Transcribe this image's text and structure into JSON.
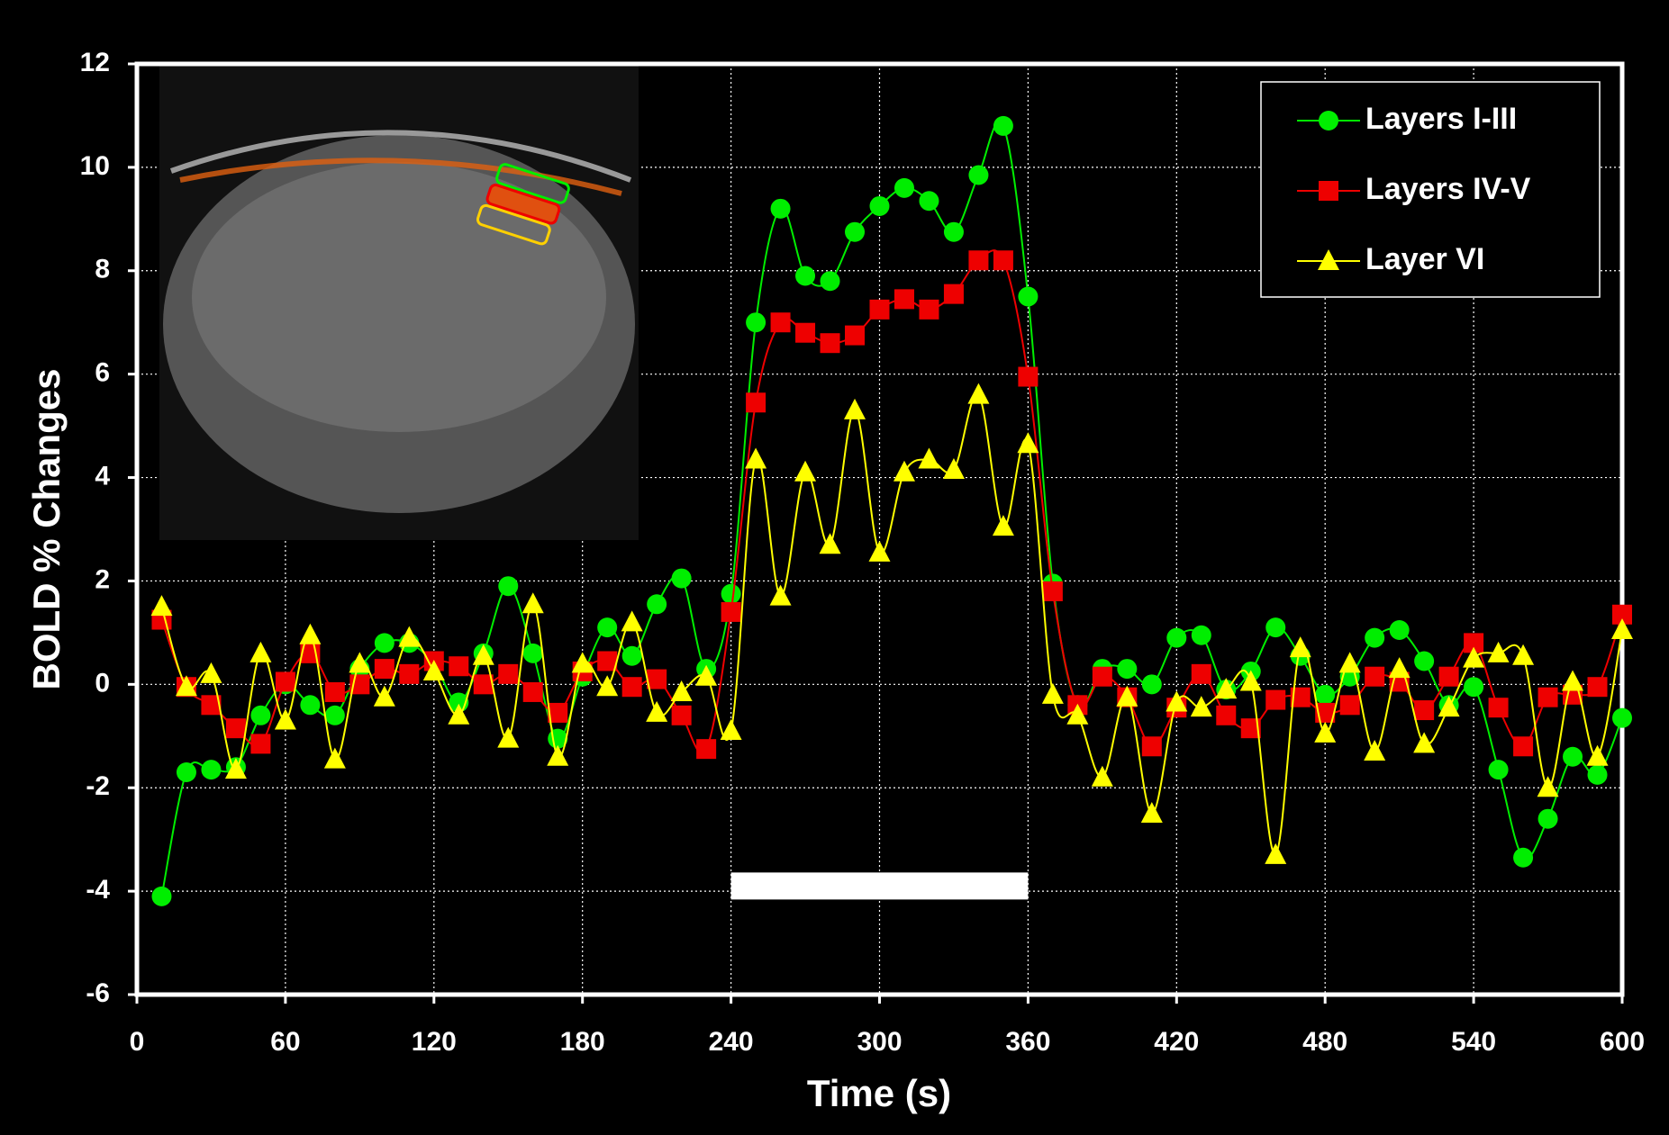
{
  "chart_data": {
    "type": "line",
    "x_label": "Time (s)",
    "y_label": "BOLD % Changes",
    "x": [
      10,
      20,
      30,
      40,
      50,
      60,
      70,
      80,
      90,
      100,
      110,
      120,
      130,
      140,
      150,
      160,
      170,
      180,
      190,
      200,
      210,
      220,
      230,
      240,
      250,
      260,
      270,
      280,
      290,
      300,
      310,
      320,
      330,
      340,
      350,
      360,
      370,
      380,
      390,
      400,
      410,
      420,
      430,
      440,
      450,
      460,
      470,
      480,
      490,
      500,
      510,
      520,
      530,
      540,
      550,
      560,
      570,
      580,
      590,
      600
    ],
    "series": [
      {
        "name": "Layers I-III",
        "color": "#00ee00",
        "marker": "circle",
        "values": [
          -4.1,
          -1.7,
          -1.65,
          -1.6,
          -0.6,
          0.0,
          -0.4,
          -0.6,
          0.3,
          0.8,
          0.8,
          0.4,
          -0.35,
          0.6,
          1.9,
          0.6,
          -1.05,
          0.15,
          1.1,
          0.55,
          1.55,
          2.05,
          0.3,
          1.75,
          7.0,
          9.2,
          7.9,
          7.8,
          8.75,
          9.25,
          9.6,
          9.35,
          8.75,
          9.85,
          10.8,
          7.5,
          1.95,
          -0.4,
          0.3,
          0.3,
          0.0,
          0.9,
          0.95,
          -0.1,
          0.25,
          1.1,
          0.55,
          -0.2,
          0.15,
          0.9,
          1.05,
          0.45,
          -0.4,
          -0.05,
          -1.65,
          -3.35,
          -2.6,
          -1.4,
          -1.75,
          -0.65
        ]
      },
      {
        "name": "Layers IV-V",
        "color": "#ee0000",
        "marker": "square",
        "values": [
          1.25,
          -0.05,
          -0.4,
          -0.85,
          -1.15,
          0.05,
          0.6,
          -0.15,
          0.0,
          0.3,
          0.2,
          0.45,
          0.35,
          0.0,
          0.2,
          -0.15,
          -0.55,
          0.25,
          0.45,
          -0.05,
          0.1,
          -0.6,
          -1.25,
          1.4,
          5.45,
          7.0,
          6.8,
          6.6,
          6.75,
          7.25,
          7.45,
          7.25,
          7.55,
          8.2,
          8.2,
          5.95,
          1.8,
          -0.4,
          0.15,
          -0.25,
          -1.2,
          -0.45,
          0.2,
          -0.6,
          -0.85,
          -0.3,
          -0.25,
          -0.55,
          -0.4,
          0.15,
          0.05,
          -0.5,
          0.15,
          0.8,
          -0.45,
          -1.2,
          -0.25,
          -0.2,
          -0.05,
          1.35
        ]
      },
      {
        "name": "Layer VI",
        "color": "#ffff00",
        "marker": "triangle",
        "values": [
          1.5,
          -0.05,
          0.2,
          -1.65,
          0.6,
          -0.7,
          0.95,
          -1.45,
          0.4,
          -0.25,
          0.9,
          0.25,
          -0.6,
          0.55,
          -1.05,
          1.55,
          -1.4,
          0.4,
          -0.05,
          1.2,
          -0.55,
          -0.15,
          0.15,
          -0.9,
          4.35,
          1.7,
          4.1,
          2.7,
          5.3,
          2.55,
          4.1,
          4.35,
          4.15,
          5.6,
          3.05,
          4.65,
          -0.2,
          -0.6,
          -1.8,
          -0.25,
          -2.5,
          -0.35,
          -0.45,
          -0.1,
          0.05,
          -3.3,
          0.7,
          -0.95,
          0.4,
          -1.3,
          0.3,
          -1.15,
          -0.45,
          0.5,
          0.6,
          0.55,
          -2.0,
          0.05,
          -1.4,
          1.05
        ]
      }
    ],
    "stimulus_bar": {
      "x": [
        240,
        360
      ],
      "y": -3.9
    },
    "xlim": [
      0,
      600
    ],
    "xticks": [
      0,
      60,
      120,
      180,
      240,
      300,
      360,
      420,
      480,
      540,
      600
    ],
    "ylim": [
      -6,
      12
    ],
    "yticks": [
      -6,
      -4,
      -2,
      0,
      2,
      4,
      6,
      8,
      10,
      12
    ],
    "grid": true,
    "legend": "upper right",
    "smooth": true
  }
}
